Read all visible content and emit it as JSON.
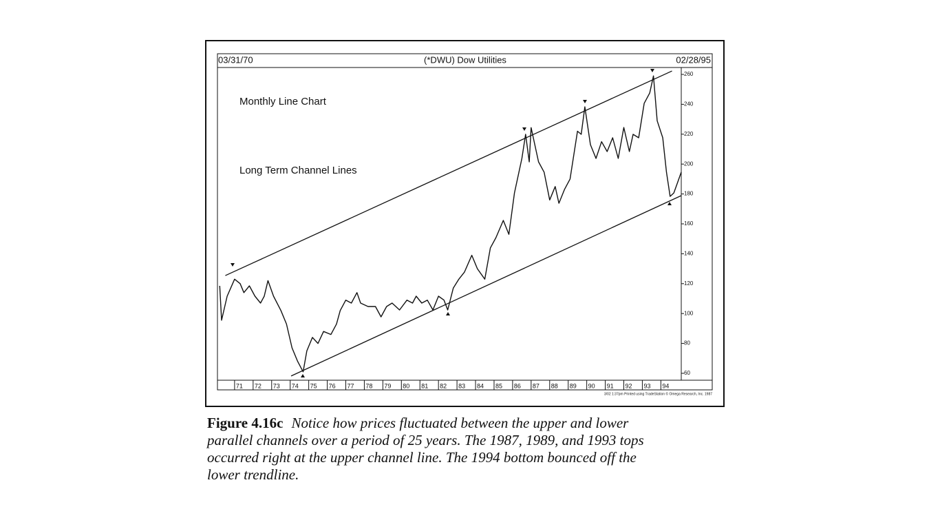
{
  "chart_data": {
    "type": "line",
    "title": "(*DWU) Dow Utilities",
    "start_date": "03/31/70",
    "end_date": "02/28/95",
    "annotations": [
      "Monthly Line Chart",
      "Long Term Channel Lines"
    ],
    "footnote": "3/02 1:37pm Printed using TradeStation © Omega Research, Inc. 1987",
    "x": [
      70.2,
      70.3,
      70.6,
      71.0,
      71.3,
      71.5,
      71.8,
      72.1,
      72.4,
      72.6,
      72.8,
      73.1,
      73.5,
      73.8,
      74.1,
      74.4,
      74.7,
      74.9,
      75.2,
      75.5,
      75.8,
      76.2,
      76.5,
      76.7,
      77.0,
      77.3,
      77.6,
      77.8,
      78.2,
      78.6,
      78.9,
      79.2,
      79.5,
      79.9,
      80.3,
      80.6,
      80.8,
      81.1,
      81.4,
      81.7,
      82.0,
      82.3,
      82.5,
      82.8,
      83.1,
      83.4,
      83.8,
      84.1,
      84.5,
      84.8,
      85.1,
      85.5,
      85.8,
      86.1,
      86.5,
      86.7,
      86.9,
      87.0,
      87.4,
      87.7,
      88.0,
      88.3,
      88.5,
      88.8,
      89.1,
      89.5,
      89.7,
      89.9,
      90.2,
      90.5,
      90.8,
      91.1,
      91.4,
      91.7,
      92.0,
      92.3,
      92.5,
      92.8,
      93.1,
      93.4,
      93.6,
      93.8,
      94.1,
      94.3,
      94.5,
      94.7,
      94.9,
      95.1
    ],
    "values": [
      118.5,
      95.5,
      111.6,
      123,
      120,
      114,
      118.5,
      111.6,
      107,
      111.6,
      122,
      111.6,
      102,
      93,
      77,
      68,
      61,
      75,
      84,
      80,
      88,
      86,
      93,
      102,
      109,
      107,
      114,
      107,
      104.7,
      104.7,
      97.8,
      104.7,
      107,
      102.4,
      109,
      107,
      111.6,
      107,
      109,
      102.4,
      111.6,
      109,
      102.4,
      117,
      123,
      127.7,
      139,
      130,
      123,
      143.9,
      150.8,
      162.3,
      153,
      180.7,
      203.8,
      219.9,
      201.5,
      224.4,
      201.5,
      194.6,
      176,
      185,
      173.8,
      183,
      190,
      222,
      219.9,
      238.3,
      213,
      203.8,
      215,
      208.4,
      217.6,
      203.8,
      224.5,
      208.4,
      219.9,
      217.6,
      240.6,
      247.6,
      259,
      229,
      217.6,
      194.6,
      178.4,
      180.7,
      187.6,
      194.6
    ],
    "channel_lines": [
      {
        "x": [
          70.5,
          94.6
        ],
        "values": [
          125.4,
          262.3
        ]
      },
      {
        "x": [
          74.05,
          95.1
        ],
        "values": [
          58.2,
          178.9
        ]
      }
    ],
    "color": "#111111",
    "xlim": [
      70.15,
      95.1
    ],
    "ylim": [
      56.3,
      263.7
    ],
    "xticks": [
      71,
      72,
      73,
      74,
      75,
      76,
      77,
      78,
      79,
      80,
      81,
      82,
      83,
      84,
      85,
      86,
      87,
      88,
      89,
      90,
      91,
      92,
      93,
      94
    ],
    "yticks": [
      60,
      80,
      100,
      120,
      140,
      160,
      180,
      200,
      220,
      240,
      260
    ],
    "grid": false
  },
  "caption": {
    "label": "Figure 4.16c",
    "lines": [
      "Notice how prices fluctuated between the upper and lower",
      "parallel channels over a period of 25 years. The 1987, 1989, and 1993 tops",
      "occurred right at the upper channel line. The 1994 bottom bounced off the",
      "lower trendline."
    ]
  }
}
